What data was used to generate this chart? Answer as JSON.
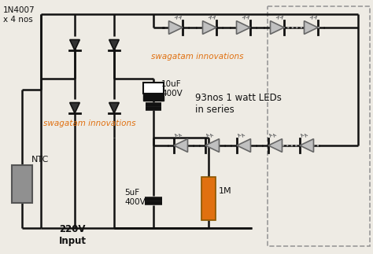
{
  "bg_color": "#eeebe4",
  "line_color": "#111111",
  "led_fill": "#c0c0c0",
  "led_fill2": "#a8a8a8",
  "orange_color": "#e07010",
  "ntc_color": "#909090",
  "watermark1": "swagatam innovations",
  "watermark2": "swagatam innovations",
  "label_1n4007": "1N4007\nx 4 nos",
  "label_cap1": "10uF\n400V",
  "label_cap2": "5uF\n400V",
  "label_res": "1M",
  "label_ntc": "NTC",
  "label_input": "220V\nInput",
  "label_leds": "93nos 1 watt LEDs\nin series",
  "dotted_color": "#999999",
  "white_cap_color": "#ffffff",
  "black_cap_color": "#111111"
}
